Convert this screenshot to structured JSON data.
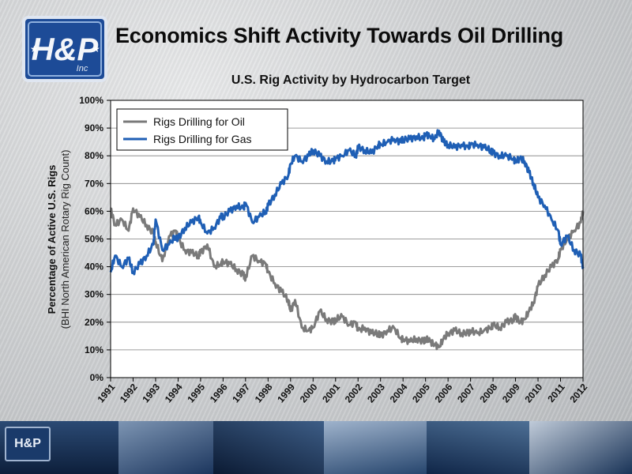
{
  "slide": {
    "title": "Economics Shift Activity Towards Oil Drilling",
    "logo_text": "H&P",
    "logo_sub": "Inc",
    "footer_logo_text": "H&P"
  },
  "colors": {
    "oil": "#7a7a7a",
    "gas": "#1f5fb5",
    "logo_blue": "#1d4b97"
  },
  "chart_data": {
    "type": "line",
    "title": "U.S. Rig Activity by Hydrocarbon Target",
    "ylabel": "Percentage of Active U.S. Rigs",
    "ylabel_sub": "(BHI North American Rotary Rig Count)",
    "xlabel": "",
    "ylim": [
      0,
      100
    ],
    "xlim": [
      1991,
      2012
    ],
    "yticks": [
      "0%",
      "10%",
      "20%",
      "30%",
      "40%",
      "50%",
      "60%",
      "70%",
      "80%",
      "90%",
      "100%"
    ],
    "xticks": [
      "1991",
      "1992",
      "1993",
      "1994",
      "1995",
      "1996",
      "1997",
      "1998",
      "1999",
      "2000",
      "2001",
      "2002",
      "2003",
      "2004",
      "2005",
      "2006",
      "2007",
      "2008",
      "2009",
      "2010",
      "2011",
      "2012"
    ],
    "grid": true,
    "legend_position": "top-left",
    "series": [
      {
        "name": "Rigs Drilling for Oil",
        "x": [
          1991,
          1991.2,
          1991.5,
          1991.8,
          1992,
          1992.3,
          1992.6,
          1992.9,
          1993,
          1993.3,
          1993.6,
          1993.9,
          1994,
          1994.3,
          1994.6,
          1994.9,
          1995,
          1995.3,
          1995.6,
          1995.9,
          1996,
          1996.3,
          1996.6,
          1996.9,
          1997,
          1997.3,
          1997.6,
          1997.9,
          1998,
          1998.3,
          1998.6,
          1998.9,
          1999,
          1999.2,
          1999.5,
          1999.8,
          2000,
          2000.3,
          2000.6,
          2000.9,
          2001,
          2001.3,
          2001.6,
          2001.9,
          2002,
          2002.3,
          2002.6,
          2002.9,
          2003,
          2003.3,
          2003.6,
          2003.9,
          2004,
          2004.3,
          2004.6,
          2004.9,
          2005,
          2005.2,
          2005.4,
          2005.6,
          2005.8,
          2006,
          2006.3,
          2006.6,
          2006.9,
          2007,
          2007.3,
          2007.6,
          2007.9,
          2008,
          2008.3,
          2008.6,
          2008.9,
          2009,
          2009.2,
          2009.4,
          2009.6,
          2009.8,
          2010,
          2010.3,
          2010.6,
          2010.9,
          2011,
          2011.3,
          2011.6,
          2011.9,
          2012
        ],
        "y": [
          61,
          55,
          57,
          53,
          61,
          58,
          55,
          52,
          49,
          42,
          51,
          53,
          50,
          46,
          45,
          44,
          45,
          48,
          40,
          41,
          42,
          41,
          39,
          37,
          36,
          44,
          42,
          41,
          38,
          34,
          31,
          28,
          24,
          28,
          18,
          17,
          18,
          24,
          21,
          20,
          21,
          22,
          19,
          20,
          17,
          18,
          16,
          16,
          15,
          17,
          18,
          14,
          14,
          13,
          14,
          13,
          14,
          13,
          12,
          11,
          14,
          16,
          17,
          16,
          16,
          17,
          16,
          17,
          18,
          19,
          18,
          20,
          21,
          22,
          20,
          21,
          24,
          27,
          33,
          37,
          40,
          43,
          46,
          50,
          53,
          56,
          60
        ]
      },
      {
        "name": "Rigs Drilling for Gas",
        "x": [
          1991,
          1991.2,
          1991.5,
          1991.8,
          1992,
          1992.3,
          1992.6,
          1992.9,
          1993,
          1993.3,
          1993.6,
          1993.9,
          1994,
          1994.3,
          1994.6,
          1994.9,
          1995,
          1995.3,
          1995.6,
          1995.9,
          1996,
          1996.3,
          1996.6,
          1996.9,
          1997,
          1997.3,
          1997.6,
          1997.9,
          1998,
          1998.3,
          1998.6,
          1998.9,
          1999,
          1999.2,
          1999.5,
          1999.8,
          2000,
          2000.3,
          2000.6,
          2000.9,
          2001,
          2001.3,
          2001.6,
          2001.9,
          2002,
          2002.3,
          2002.6,
          2002.9,
          2003,
          2003.3,
          2003.6,
          2003.9,
          2004,
          2004.3,
          2004.6,
          2004.9,
          2005,
          2005.2,
          2005.4,
          2005.6,
          2005.8,
          2006,
          2006.3,
          2006.6,
          2006.9,
          2007,
          2007.3,
          2007.6,
          2007.9,
          2008,
          2008.3,
          2008.6,
          2008.9,
          2009,
          2009.2,
          2009.4,
          2009.6,
          2009.8,
          2010,
          2010.3,
          2010.6,
          2010.9,
          2011,
          2011.3,
          2011.6,
          2011.9,
          2012
        ],
        "y": [
          38,
          44,
          40,
          43,
          38,
          41,
          44,
          48,
          57,
          46,
          48,
          51,
          50,
          54,
          56,
          58,
          56,
          52,
          54,
          58,
          58,
          60,
          62,
          61,
          63,
          56,
          58,
          60,
          62,
          66,
          70,
          73,
          77,
          80,
          78,
          80,
          82,
          80,
          78,
          78,
          79,
          80,
          82,
          80,
          83,
          82,
          81,
          84,
          84,
          85,
          86,
          85,
          86,
          86,
          87,
          86,
          88,
          87,
          86,
          89,
          85,
          84,
          83,
          84,
          83,
          84,
          84,
          83,
          82,
          81,
          80,
          80,
          79,
          78,
          79,
          78,
          74,
          70,
          65,
          62,
          57,
          53,
          48,
          51,
          46,
          44,
          40
        ]
      }
    ]
  }
}
